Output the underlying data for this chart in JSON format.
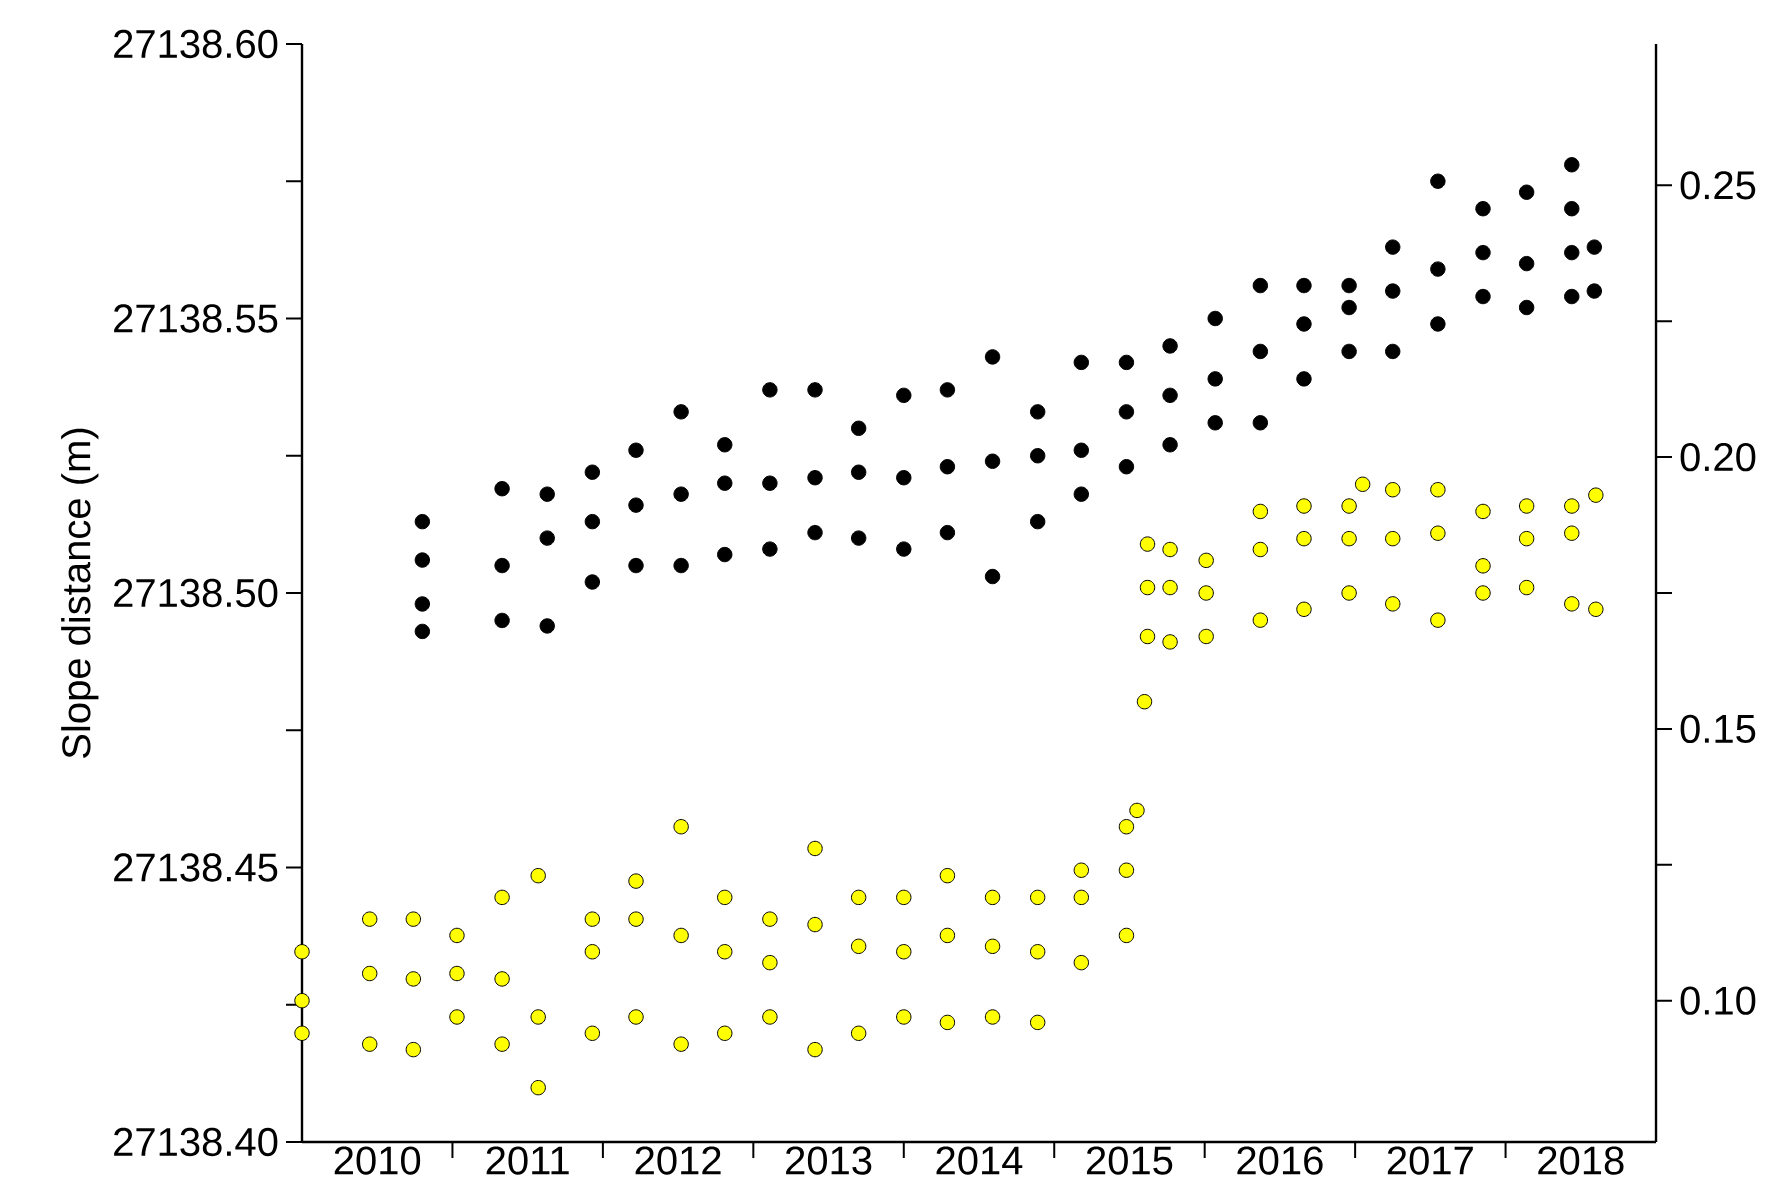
{
  "chart_data": {
    "type": "scatter",
    "ylabel": "Slope distance (m)",
    "marker": "circle",
    "xlim": [
      2010,
      2019
    ],
    "xticks": [
      {
        "value": 2010.5,
        "label": "2010"
      },
      {
        "value": 2011,
        "label": null
      },
      {
        "value": 2011.5,
        "label": "2011"
      },
      {
        "value": 2012,
        "label": null
      },
      {
        "value": 2012.5,
        "label": "2012"
      },
      {
        "value": 2013,
        "label": null
      },
      {
        "value": 2013.5,
        "label": "2013"
      },
      {
        "value": 2014,
        "label": null
      },
      {
        "value": 2014.5,
        "label": "2014"
      },
      {
        "value": 2015,
        "label": null
      },
      {
        "value": 2015.5,
        "label": "2015"
      },
      {
        "value": 2016,
        "label": null
      },
      {
        "value": 2016.5,
        "label": "2016"
      },
      {
        "value": 2017,
        "label": null
      },
      {
        "value": 2017.5,
        "label": "2017"
      },
      {
        "value": 2018,
        "label": null
      },
      {
        "value": 2018.5,
        "label": "2018"
      }
    ],
    "ylim": [
      27138.4,
      27138.6
    ],
    "yticks": [
      {
        "value": 27138.4,
        "label": "27138.40"
      },
      {
        "value": 27138.425,
        "label": null
      },
      {
        "value": 27138.45,
        "label": "27138.45"
      },
      {
        "value": 27138.475,
        "label": null
      },
      {
        "value": 27138.5,
        "label": "27138.50"
      },
      {
        "value": 27138.525,
        "label": null
      },
      {
        "value": 27138.55,
        "label": "27138.55"
      },
      {
        "value": 27138.575,
        "label": null
      },
      {
        "value": 27138.6,
        "label": "27138.60"
      }
    ],
    "y2lim": [
      0.074,
      0.276
    ],
    "y2ticks": [
      {
        "value": 0.1,
        "label": "0.10"
      },
      {
        "value": 0.125,
        "label": null
      },
      {
        "value": 0.15,
        "label": "0.15"
      },
      {
        "value": 0.175,
        "label": null
      },
      {
        "value": 0.2,
        "label": "0.20"
      },
      {
        "value": 0.225,
        "label": null
      },
      {
        "value": 0.25,
        "label": "0.25"
      }
    ],
    "series": [
      {
        "color": "#000000",
        "axis": "y",
        "x": [
          2010.8,
          2010.8,
          2010.8,
          2010.8,
          2011.33,
          2011.33,
          2011.33,
          2011.63,
          2011.63,
          2011.63,
          2011.93,
          2011.93,
          2011.93,
          2012.22,
          2012.22,
          2012.22,
          2012.52,
          2012.52,
          2012.52,
          2012.81,
          2012.81,
          2012.81,
          2013.11,
          2013.11,
          2013.11,
          2013.41,
          2013.41,
          2013.41,
          2013.7,
          2013.7,
          2013.7,
          2014.0,
          2014.0,
          2014.0,
          2014.29,
          2014.29,
          2014.29,
          2014.59,
          2014.59,
          2014.59,
          2014.89,
          2014.89,
          2014.89,
          2015.18,
          2015.18,
          2015.18,
          2015.48,
          2015.48,
          2015.48,
          2015.77,
          2015.77,
          2015.77,
          2016.07,
          2016.07,
          2016.07,
          2016.37,
          2016.37,
          2016.37,
          2016.66,
          2016.66,
          2016.66,
          2016.96,
          2016.96,
          2016.96,
          2017.25,
          2017.25,
          2017.25,
          2017.55,
          2017.55,
          2017.55,
          2017.85,
          2017.85,
          2017.85,
          2018.14,
          2018.14,
          2018.14,
          2018.44,
          2018.44,
          2018.44,
          2018.44,
          2018.59,
          2018.59
        ],
        "values": [
          27138.506,
          27138.513,
          27138.498,
          27138.493,
          27138.505,
          27138.519,
          27138.495,
          27138.51,
          27138.518,
          27138.494,
          27138.513,
          27138.522,
          27138.502,
          27138.516,
          27138.526,
          27138.505,
          27138.518,
          27138.533,
          27138.505,
          27138.52,
          27138.527,
          27138.507,
          27138.52,
          27138.537,
          27138.508,
          27138.521,
          27138.537,
          27138.511,
          27138.522,
          27138.53,
          27138.51,
          27138.521,
          27138.536,
          27138.508,
          27138.523,
          27138.537,
          27138.511,
          27138.524,
          27138.543,
          27138.503,
          27138.525,
          27138.533,
          27138.513,
          27138.526,
          27138.542,
          27138.518,
          27138.533,
          27138.542,
          27138.523,
          27138.536,
          27138.545,
          27138.527,
          27138.539,
          27138.55,
          27138.531,
          27138.544,
          27138.556,
          27138.531,
          27138.549,
          27138.556,
          27138.539,
          27138.552,
          27138.556,
          27138.544,
          27138.555,
          27138.563,
          27138.544,
          27138.559,
          27138.575,
          27138.549,
          27138.562,
          27138.57,
          27138.554,
          27138.56,
          27138.573,
          27138.552,
          27138.562,
          27138.578,
          27138.57,
          27138.554,
          27138.563,
          27138.555
        ]
      },
      {
        "color": "#ffff00",
        "axis": "y2",
        "x": [
          2010.0,
          2010.0,
          2010.0,
          2010.45,
          2010.45,
          2010.45,
          2010.74,
          2010.74,
          2010.74,
          2011.03,
          2011.03,
          2011.03,
          2011.33,
          2011.33,
          2011.33,
          2011.57,
          2011.57,
          2011.57,
          2011.93,
          2011.93,
          2011.93,
          2012.22,
          2012.22,
          2012.22,
          2012.52,
          2012.52,
          2012.52,
          2012.81,
          2012.81,
          2012.81,
          2013.11,
          2013.11,
          2013.11,
          2013.41,
          2013.41,
          2013.41,
          2013.7,
          2013.7,
          2013.7,
          2014.0,
          2014.0,
          2014.0,
          2014.29,
          2014.29,
          2014.29,
          2014.59,
          2014.59,
          2014.59,
          2014.89,
          2014.89,
          2014.89,
          2015.18,
          2015.18,
          2015.18,
          2015.48,
          2015.48,
          2015.48,
          2015.55,
          2015.6,
          2015.62,
          2015.62,
          2015.62,
          2015.77,
          2015.77,
          2015.77,
          2016.01,
          2016.01,
          2016.01,
          2016.37,
          2016.37,
          2016.37,
          2016.66,
          2016.66,
          2016.66,
          2016.96,
          2016.96,
          2016.96,
          2017.05,
          2017.25,
          2017.25,
          2017.25,
          2017.55,
          2017.55,
          2017.55,
          2017.85,
          2017.85,
          2017.85,
          2018.14,
          2018.14,
          2018.14,
          2018.44,
          2018.44,
          2018.44,
          2018.6,
          2018.6
        ],
        "values": [
          0.1,
          0.109,
          0.094,
          0.105,
          0.115,
          0.092,
          0.104,
          0.115,
          0.091,
          0.105,
          0.112,
          0.097,
          0.104,
          0.119,
          0.092,
          0.097,
          0.123,
          0.084,
          0.109,
          0.115,
          0.094,
          0.115,
          0.122,
          0.097,
          0.112,
          0.132,
          0.092,
          0.109,
          0.119,
          0.094,
          0.107,
          0.115,
          0.097,
          0.114,
          0.128,
          0.091,
          0.11,
          0.119,
          0.094,
          0.109,
          0.119,
          0.097,
          0.112,
          0.123,
          0.096,
          0.11,
          0.119,
          0.097,
          0.109,
          0.119,
          0.096,
          0.119,
          0.124,
          0.107,
          0.124,
          0.132,
          0.112,
          0.135,
          0.155,
          0.176,
          0.184,
          0.167,
          0.176,
          0.183,
          0.166,
          0.175,
          0.181,
          0.167,
          0.183,
          0.19,
          0.17,
          0.185,
          0.191,
          0.172,
          0.185,
          0.191,
          0.175,
          0.195,
          0.185,
          0.194,
          0.173,
          0.186,
          0.194,
          0.17,
          0.18,
          0.19,
          0.175,
          0.185,
          0.191,
          0.176,
          0.186,
          0.191,
          0.173,
          0.193,
          0.172
        ]
      }
    ]
  }
}
